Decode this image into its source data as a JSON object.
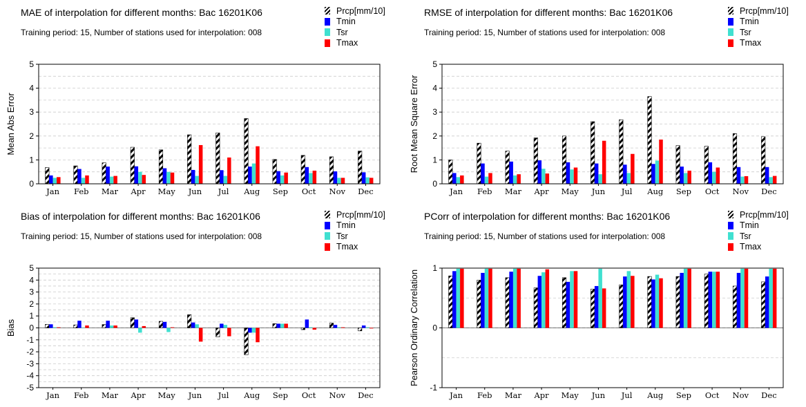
{
  "colors": {
    "Prcp": "#000000",
    "Tmin": "#0000ff",
    "Tsr": "#40e0d0",
    "Tmax": "#ff0000",
    "grid": "#cccccc",
    "frame": "#000000"
  },
  "chart_data": [
    {
      "type": "bar",
      "title": "MAE of interpolation for different months: Bac  16201K06",
      "subtitle": "Training period: 15, Number of stations used for interpolation: 008",
      "ylabel": "Mean Abs Error",
      "ylim": [
        0,
        5
      ],
      "yticks": [
        "0",
        "1",
        "2",
        "3",
        "4",
        "5"
      ],
      "ytick_values": [
        0,
        1,
        2,
        3,
        4,
        5
      ],
      "grid": true,
      "legend_position": "top-right",
      "categories": [
        "Jan",
        "Feb",
        "Mar",
        "Apr",
        "May",
        "Jun",
        "Jul",
        "Aug",
        "Sep",
        "Oct",
        "Nov",
        "Dec"
      ],
      "series": [
        {
          "name": "Prcp[mm/10]",
          "values": [
            0.68,
            0.75,
            0.88,
            1.53,
            1.42,
            2.05,
            2.13,
            2.73,
            1.02,
            1.19,
            1.13,
            1.37
          ]
        },
        {
          "name": "Tmin",
          "values": [
            0.35,
            0.62,
            0.72,
            0.73,
            0.65,
            0.58,
            0.57,
            0.72,
            0.53,
            0.7,
            0.52,
            0.48
          ]
        },
        {
          "name": "Tsr",
          "values": [
            0.25,
            0.25,
            0.3,
            0.5,
            0.5,
            0.33,
            0.33,
            0.85,
            0.35,
            0.45,
            0.25,
            0.27
          ]
        },
        {
          "name": "Tmax",
          "values": [
            0.28,
            0.35,
            0.33,
            0.37,
            0.47,
            1.62,
            1.1,
            1.57,
            0.47,
            0.55,
            0.25,
            0.25
          ]
        }
      ]
    },
    {
      "type": "bar",
      "title": "RMSE of interpolation for different months: Bac  16201K06",
      "subtitle": "Training period: 15, Number of stations used for interpolation: 008",
      "ylabel": "Root Mean Square Error",
      "ylim": [
        0,
        5
      ],
      "yticks": [
        "0",
        "1",
        "2",
        "3",
        "4",
        "5"
      ],
      "ytick_values": [
        0,
        1,
        2,
        3,
        4,
        5
      ],
      "grid": true,
      "legend_position": "top-right",
      "categories": [
        "Jan",
        "Feb",
        "Mar",
        "Apr",
        "May",
        "Jun",
        "Jul",
        "Aug",
        "Sep",
        "Oct",
        "Nov",
        "Dec"
      ],
      "series": [
        {
          "name": "Prcp[mm/10]",
          "values": [
            1.0,
            1.7,
            1.37,
            1.92,
            2.0,
            2.6,
            2.68,
            3.65,
            1.6,
            1.57,
            2.1,
            1.97
          ]
        },
        {
          "name": "Tmin",
          "values": [
            0.45,
            0.85,
            0.93,
            0.98,
            0.9,
            0.85,
            0.8,
            0.83,
            0.72,
            0.9,
            0.7,
            0.7
          ]
        },
        {
          "name": "Tsr",
          "values": [
            0.28,
            0.3,
            0.35,
            0.63,
            0.6,
            0.4,
            0.45,
            0.97,
            0.45,
            0.5,
            0.3,
            0.28
          ]
        },
        {
          "name": "Tmax",
          "values": [
            0.35,
            0.45,
            0.4,
            0.43,
            0.68,
            1.8,
            1.25,
            1.85,
            0.55,
            0.68,
            0.32,
            0.33
          ]
        }
      ]
    },
    {
      "type": "bar",
      "title": "Bias of interpolation for different months: Bac  16201K06",
      "subtitle": "Training period: 15, Number of stations used for interpolation: 008",
      "ylabel": "Bias",
      "ylim": [
        -5,
        5
      ],
      "yticks": [
        "-5",
        "-4",
        "-3",
        "-2",
        "-1",
        "0",
        "1",
        "2",
        "3",
        "4",
        "5"
      ],
      "ytick_values": [
        -5,
        -4,
        -3,
        -2,
        -1,
        0,
        1,
        2,
        3,
        4,
        5
      ],
      "grid": true,
      "legend_position": "top-right",
      "categories": [
        "Jan",
        "Feb",
        "Mar",
        "Apr",
        "May",
        "Jun",
        "Jul",
        "Aug",
        "Sep",
        "Oct",
        "Nov",
        "Dec"
      ],
      "series": [
        {
          "name": "Prcp[mm/10]",
          "values": [
            0.3,
            0.25,
            0.28,
            0.85,
            0.55,
            1.1,
            -0.75,
            -2.25,
            0.35,
            -0.15,
            0.4,
            -0.25
          ]
        },
        {
          "name": "Tmin",
          "values": [
            0.3,
            0.6,
            0.6,
            0.7,
            0.5,
            0.45,
            0.35,
            -0.4,
            0.35,
            0.7,
            0.25,
            0.2
          ]
        },
        {
          "name": "Tsr",
          "values": [
            0.05,
            0.03,
            0.2,
            -0.4,
            -0.35,
            0.3,
            0.25,
            -0.4,
            0.35,
            0.05,
            0.05,
            0.05
          ]
        },
        {
          "name": "Tmax",
          "values": [
            0.05,
            0.2,
            0.2,
            0.15,
            0.05,
            -1.15,
            -0.7,
            -1.2,
            0.35,
            -0.15,
            0.05,
            -0.05
          ]
        }
      ]
    },
    {
      "type": "bar",
      "title": "PCorr of interpolation for different months: Bac  16201K06",
      "subtitle": "Training period: 15, Number of stations used for interpolation: 008",
      "ylabel": "Pearson Ordinary Correlation",
      "ylim": [
        -1,
        1
      ],
      "yticks": [
        "-1",
        "0",
        "1"
      ],
      "ytick_values": [
        -1,
        0,
        1
      ],
      "grid": true,
      "legend_position": "top-right",
      "categories": [
        "Jan",
        "Feb",
        "Mar",
        "Apr",
        "May",
        "Jun",
        "Jul",
        "Aug",
        "Sep",
        "Oct",
        "Nov",
        "Dec"
      ],
      "series": [
        {
          "name": "Prcp[mm/10]",
          "values": [
            0.87,
            0.8,
            0.84,
            0.67,
            0.84,
            0.65,
            0.72,
            0.86,
            0.86,
            0.9,
            0.7,
            0.77
          ]
        },
        {
          "name": "Tmin",
          "values": [
            0.95,
            0.92,
            0.94,
            0.87,
            0.77,
            0.7,
            0.86,
            0.81,
            0.92,
            0.94,
            0.92,
            0.86
          ]
        },
        {
          "name": "Tsr",
          "values": [
            0.99,
            0.99,
            0.99,
            0.93,
            0.95,
            0.99,
            0.95,
            0.89,
            0.99,
            0.94,
            0.99,
            0.99
          ]
        },
        {
          "name": "Tmax",
          "values": [
            0.99,
            0.99,
            0.99,
            0.98,
            0.95,
            0.66,
            0.87,
            0.83,
            0.99,
            0.94,
            0.99,
            0.99
          ]
        }
      ]
    }
  ]
}
